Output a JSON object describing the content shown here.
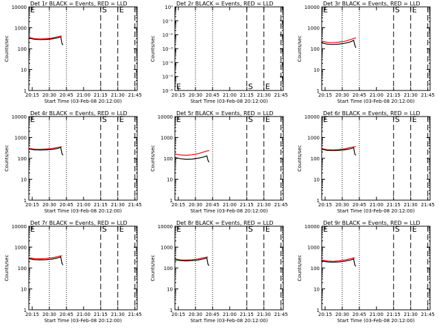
{
  "colors": {
    "events": "#000000",
    "lld": "#ff0000",
    "background": "#ffffff"
  },
  "shared_x": {
    "ticks": [
      "20:15",
      "20:30",
      "20:45",
      "21:00",
      "21:15",
      "21:30",
      "21:45"
    ],
    "xlabel": "Start Time (03-Feb-08 20:12:00)"
  },
  "chart_data": [
    {
      "type": "line",
      "title": "Det 1r BLACK = Events, RED = LLD",
      "ylabel": "Counts/sec",
      "yscale": "log",
      "ylim": [
        1,
        10000
      ],
      "yticks": [
        "1",
        "10",
        "100",
        "1000",
        "10000"
      ],
      "markers": [
        {
          "label": "E",
          "style": "dashed"
        },
        {
          "label": "S",
          "style": "dashed"
        },
        {
          "label": "E",
          "style": "dashed"
        }
      ],
      "series": [
        {
          "values": [
            [
              0,
              320
            ],
            [
              5,
              280
            ],
            [
              10,
              270
            ],
            [
              15,
              275
            ],
            [
              20,
              290
            ],
            [
              25,
              330
            ],
            [
              28,
              370
            ],
            [
              29,
              180
            ],
            [
              30,
              150
            ]
          ]
        },
        {
          "values": [
            [
              0,
              350
            ],
            [
              5,
              300
            ],
            [
              10,
              290
            ],
            [
              15,
              300
            ],
            [
              20,
              320
            ],
            [
              25,
              370
            ],
            [
              29,
              400
            ]
          ]
        }
      ]
    },
    {
      "type": "line",
      "title": "Det 2r BLACK = Events, RED = LLD",
      "ylabel": "Counts/sec",
      "yscale": "log",
      "ylim": [
        1e-06,
        1
      ],
      "yticks": [
        "10⁻⁶",
        "10⁻⁵",
        "10⁻⁴",
        "10⁻³",
        "10⁻²",
        "10⁻¹",
        "10⁰"
      ],
      "markers": [
        {
          "label": "E",
          "style": "dashed"
        },
        {
          "label": "S",
          "style": "dashed"
        },
        {
          "label": "E",
          "style": "dashed"
        }
      ],
      "series": []
    },
    {
      "type": "line",
      "title": "Det 3r BLACK = Events, RED = LLD",
      "ylabel": "Counts/sec",
      "yscale": "log",
      "ylim": [
        1,
        10000
      ],
      "yticks": [
        "1",
        "10",
        "100",
        "1000",
        "10000"
      ],
      "markers": [
        {
          "label": "E",
          "style": "dashed"
        },
        {
          "label": "S",
          "style": "dashed"
        },
        {
          "label": "E",
          "style": "dashed"
        }
      ],
      "series": [
        {
          "values": [
            [
              0,
              190
            ],
            [
              5,
              165
            ],
            [
              10,
              160
            ],
            [
              15,
              165
            ],
            [
              20,
              180
            ],
            [
              25,
              210
            ],
            [
              28,
              250
            ],
            [
              29,
              150
            ],
            [
              30,
              110
            ]
          ]
        },
        {
          "values": [
            [
              0,
              230
            ],
            [
              5,
              200
            ],
            [
              10,
              195
            ],
            [
              15,
              205
            ],
            [
              20,
              225
            ],
            [
              25,
              270
            ],
            [
              30,
              330
            ]
          ]
        }
      ]
    },
    {
      "type": "line",
      "title": "Det 4r BLACK = Events, RED = LLD",
      "ylabel": "Counts/sec",
      "yscale": "log",
      "ylim": [
        1,
        10000
      ],
      "yticks": [
        "1",
        "10",
        "100",
        "1000",
        "10000"
      ],
      "markers": [
        {
          "label": "E",
          "style": "dashed"
        },
        {
          "label": "S",
          "style": "dashed"
        },
        {
          "label": "E",
          "style": "dashed"
        }
      ],
      "series": [
        {
          "values": [
            [
              0,
              280
            ],
            [
              5,
              255
            ],
            [
              10,
              250
            ],
            [
              15,
              255
            ],
            [
              20,
              265
            ],
            [
              25,
              295
            ],
            [
              28,
              330
            ],
            [
              29,
              170
            ],
            [
              30,
              140
            ]
          ]
        },
        {
          "values": [
            [
              0,
              300
            ],
            [
              5,
              275
            ],
            [
              10,
              270
            ],
            [
              15,
              280
            ],
            [
              20,
              295
            ],
            [
              25,
              330
            ],
            [
              29,
              360
            ]
          ]
        }
      ]
    },
    {
      "type": "line",
      "title": "Det 5r BLACK = Events, RED = LLD",
      "ylabel": "Counts/sec",
      "yscale": "log",
      "ylim": [
        1,
        10000
      ],
      "yticks": [
        "1",
        "10",
        "100",
        "1000",
        "10000"
      ],
      "markers": [
        {
          "label": "E",
          "style": "dashed"
        },
        {
          "label": "S",
          "style": "dashed"
        },
        {
          "label": "E",
          "style": "dashed"
        }
      ],
      "series": [
        {
          "values": [
            [
              0,
              110
            ],
            [
              5,
              95
            ],
            [
              10,
              90
            ],
            [
              15,
              92
            ],
            [
              20,
              100
            ],
            [
              25,
              115
            ],
            [
              28,
              130
            ],
            [
              29,
              80
            ],
            [
              30,
              65
            ]
          ]
        },
        {
          "values": [
            [
              0,
              160
            ],
            [
              5,
              145
            ],
            [
              10,
              140
            ],
            [
              15,
              148
            ],
            [
              20,
              165
            ],
            [
              25,
              200
            ],
            [
              30,
              240
            ]
          ]
        }
      ]
    },
    {
      "type": "line",
      "title": "Det 6r BLACK = Events, RED = LLD",
      "ylabel": "Counts/sec",
      "yscale": "log",
      "ylim": [
        1,
        10000
      ],
      "yticks": [
        "1",
        "10",
        "100",
        "1000",
        "10000"
      ],
      "markers": [
        {
          "label": "E",
          "style": "dashed"
        },
        {
          "label": "S",
          "style": "dashed"
        },
        {
          "label": "E",
          "style": "dashed"
        }
      ],
      "series": [
        {
          "values": [
            [
              0,
              270
            ],
            [
              5,
              240
            ],
            [
              10,
              235
            ],
            [
              15,
              240
            ],
            [
              20,
              255
            ],
            [
              25,
              285
            ],
            [
              28,
              320
            ],
            [
              29,
              160
            ],
            [
              30,
              140
            ]
          ]
        },
        {
          "values": [
            [
              0,
              290
            ],
            [
              5,
              260
            ],
            [
              10,
              255
            ],
            [
              15,
              265
            ],
            [
              20,
              285
            ],
            [
              25,
              330
            ],
            [
              30,
              370
            ]
          ]
        }
      ]
    },
    {
      "type": "line",
      "title": "Det 7r BLACK = Events, RED = LLD",
      "ylabel": "Counts/sec",
      "yscale": "log",
      "ylim": [
        1,
        10000
      ],
      "yticks": [
        "1",
        "10",
        "100",
        "1000",
        "10000"
      ],
      "markers": [
        {
          "label": "E",
          "style": "dashed"
        },
        {
          "label": "S",
          "style": "dashed"
        },
        {
          "label": "E",
          "style": "dashed"
        }
      ],
      "series": [
        {
          "values": [
            [
              0,
              280
            ],
            [
              5,
              250
            ],
            [
              10,
              245
            ],
            [
              15,
              250
            ],
            [
              20,
              265
            ],
            [
              25,
              300
            ],
            [
              28,
              340
            ],
            [
              29,
              170
            ],
            [
              30,
              140
            ]
          ]
        },
        {
          "values": [
            [
              0,
              310
            ],
            [
              5,
              280
            ],
            [
              10,
              275
            ],
            [
              15,
              285
            ],
            [
              20,
              305
            ],
            [
              25,
              350
            ],
            [
              29,
              390
            ]
          ]
        }
      ]
    },
    {
      "type": "line",
      "title": "Det 8r BLACK = Events, RED = LLD",
      "ylabel": "Counts/sec",
      "yscale": "log",
      "ylim": [
        1,
        10000
      ],
      "yticks": [
        "1",
        "10",
        "100",
        "1000",
        "10000"
      ],
      "markers": [
        {
          "label": "E",
          "style": "dashed"
        },
        {
          "label": "S",
          "style": "dashed"
        },
        {
          "label": "E",
          "style": "dashed"
        }
      ],
      "series": [
        {
          "values": [
            [
              0,
              250
            ],
            [
              5,
              225
            ],
            [
              10,
              220
            ],
            [
              15,
              225
            ],
            [
              20,
              240
            ],
            [
              25,
              270
            ],
            [
              28,
              300
            ],
            [
              29,
              150
            ],
            [
              30,
              130
            ]
          ]
        },
        {
          "values": [
            [
              0,
              270
            ],
            [
              5,
              245
            ],
            [
              10,
              240
            ],
            [
              15,
              250
            ],
            [
              20,
              270
            ],
            [
              25,
              310
            ],
            [
              29,
              340
            ]
          ]
        }
      ]
    },
    {
      "type": "line",
      "title": "Det 9r BLACK = Events, RED = LLD",
      "ylabel": "Counts/sec",
      "yscale": "log",
      "ylim": [
        1,
        10000
      ],
      "yticks": [
        "1",
        "10",
        "100",
        "1000",
        "10000"
      ],
      "markers": [
        {
          "label": "E",
          "style": "dashed"
        },
        {
          "label": "S",
          "style": "dashed"
        },
        {
          "label": "E",
          "style": "dashed"
        }
      ],
      "series": [
        {
          "values": [
            [
              0,
              220
            ],
            [
              5,
              195
            ],
            [
              10,
              190
            ],
            [
              15,
              195
            ],
            [
              20,
              210
            ],
            [
              25,
              240
            ],
            [
              28,
              270
            ],
            [
              29,
              140
            ],
            [
              30,
              120
            ]
          ]
        },
        {
          "values": [
            [
              0,
              240
            ],
            [
              5,
              215
            ],
            [
              10,
              210
            ],
            [
              15,
              220
            ],
            [
              20,
              240
            ],
            [
              25,
              280
            ],
            [
              29,
              310
            ]
          ]
        }
      ]
    }
  ]
}
